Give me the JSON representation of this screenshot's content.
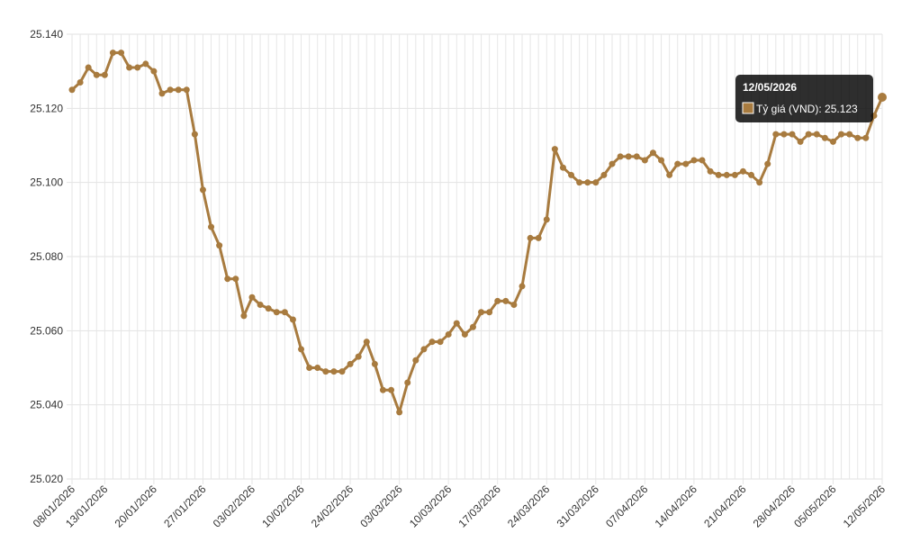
{
  "chart_data": {
    "type": "line",
    "categories": [
      "08/01/2026",
      null,
      null,
      null,
      "13/01/2026",
      null,
      null,
      null,
      null,
      null,
      "20/01/2026",
      null,
      null,
      null,
      null,
      null,
      "27/01/2026",
      null,
      null,
      null,
      null,
      null,
      "03/02/2026",
      null,
      null,
      null,
      null,
      null,
      "10/02/2026",
      null,
      null,
      null,
      null,
      null,
      "24/02/2026",
      null,
      null,
      null,
      null,
      null,
      "03/03/2026",
      null,
      null,
      null,
      null,
      null,
      "10/03/2026",
      null,
      null,
      null,
      null,
      null,
      "17/03/2026",
      null,
      null,
      null,
      null,
      null,
      "24/03/2026",
      null,
      null,
      null,
      null,
      null,
      "31/03/2026",
      null,
      null,
      null,
      null,
      null,
      "07/04/2026",
      null,
      null,
      null,
      null,
      null,
      "14/04/2026",
      null,
      null,
      null,
      null,
      null,
      "21/04/2026",
      null,
      null,
      null,
      null,
      null,
      "28/04/2026",
      null,
      null,
      null,
      null,
      "05/05/2026",
      null,
      null,
      null,
      null,
      null,
      "12/05/2026"
    ],
    "series": [
      {
        "name": "Tỷ giá (VND)",
        "color": "#a87b3f",
        "values": [
          25.125,
          25.127,
          25.131,
          25.129,
          25.129,
          25.135,
          25.135,
          25.131,
          25.131,
          25.132,
          25.13,
          25.124,
          25.125,
          25.125,
          25.125,
          25.113,
          25.098,
          25.088,
          25.083,
          25.074,
          25.074,
          25.064,
          25.069,
          25.067,
          25.066,
          25.065,
          25.065,
          25.063,
          25.055,
          25.05,
          25.05,
          25.049,
          25.049,
          25.049,
          25.051,
          25.053,
          25.057,
          25.051,
          25.044,
          25.044,
          25.038,
          25.046,
          25.052,
          25.055,
          25.057,
          25.057,
          25.059,
          25.062,
          25.059,
          25.061,
          25.065,
          25.065,
          25.068,
          25.068,
          25.067,
          25.072,
          25.085,
          25.085,
          25.09,
          25.109,
          25.104,
          25.102,
          25.1,
          25.1,
          25.1,
          25.102,
          25.105,
          25.107,
          25.107,
          25.107,
          25.106,
          25.108,
          25.106,
          25.102,
          25.105,
          25.105,
          25.106,
          25.106,
          25.103,
          25.102,
          25.102,
          25.102,
          25.103,
          25.102,
          25.1,
          25.105,
          25.113,
          25.113,
          25.113,
          25.111,
          25.113,
          25.113,
          25.112,
          25.111,
          25.113,
          25.113,
          25.112,
          25.112,
          25.118,
          25.123
        ]
      }
    ],
    "ylim": [
      25.02,
      25.14
    ],
    "yticks": [
      {
        "value": 25.02,
        "label": "25.020"
      },
      {
        "value": 25.04,
        "label": "25.040"
      },
      {
        "value": 25.06,
        "label": "25.060"
      },
      {
        "value": 25.08,
        "label": "25.080"
      },
      {
        "value": 25.1,
        "label": "25.100"
      },
      {
        "value": 25.12,
        "label": "25.120"
      },
      {
        "value": 25.14,
        "label": "25.140"
      }
    ],
    "grid": true
  }
}
